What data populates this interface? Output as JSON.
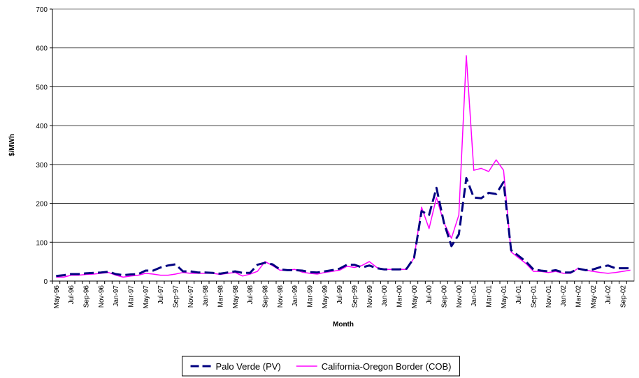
{
  "chart_data": {
    "type": "line",
    "y_label": "$/MWh",
    "x_label": "Month",
    "categories": [
      "May-96",
      null,
      "Jul-96",
      null,
      "Sep-96",
      null,
      "Nov-96",
      null,
      "Jan-97",
      null,
      "Mar-97",
      null,
      "May-97",
      null,
      "Jul-97",
      null,
      "Sep-97",
      null,
      "Nov-97",
      null,
      "Jan-98",
      null,
      "Mar-98",
      null,
      "May-98",
      null,
      "Jul-98",
      null,
      "Sep-98",
      null,
      "Nov-98",
      null,
      "Jan-99",
      null,
      "Mar-99",
      null,
      "May-99",
      null,
      "Jul-99",
      null,
      "Sep-99",
      null,
      "Nov-99",
      null,
      "Jan-00",
      null,
      "Mar-00",
      null,
      "May-00",
      null,
      "Jul-00",
      null,
      "Sep-00",
      null,
      "Nov-00",
      null,
      "Jan-01",
      null,
      "Mar-01",
      null,
      "May-01",
      null,
      "Jul-01",
      null,
      "Sep-01",
      null,
      "Nov-01",
      null,
      "Jan-02",
      null,
      "Mar-02",
      null,
      "May-02",
      null,
      "Jul-02",
      null,
      "Sep-02",
      null
    ],
    "series": [
      {
        "name": "Palo Verde (PV)",
        "color": "#000080",
        "dashed": true,
        "values": [
          13,
          15,
          18,
          18,
          20,
          21,
          22,
          24,
          18,
          15,
          17,
          18,
          27,
          27,
          35,
          40,
          43,
          25,
          25,
          22,
          22,
          21,
          19,
          22,
          25,
          21,
          21,
          42,
          47,
          43,
          30,
          28,
          28,
          27,
          23,
          22,
          25,
          28,
          32,
          42,
          42,
          35,
          40,
          33,
          30,
          30,
          30,
          32,
          60,
          180,
          170,
          240,
          150,
          90,
          120,
          265,
          215,
          213,
          227,
          224,
          255,
          80,
          65,
          50,
          30,
          27,
          25,
          28,
          22,
          22,
          32,
          28,
          30,
          36,
          40,
          33,
          33,
          33
        ]
      },
      {
        "name": "California-Oregon Border (COB)",
        "color": "#ff00ff",
        "dashed": false,
        "values": [
          10,
          10,
          15,
          15,
          17,
          18,
          20,
          22,
          15,
          10,
          13,
          15,
          20,
          18,
          15,
          15,
          18,
          22,
          20,
          20,
          20,
          20,
          17,
          20,
          22,
          13,
          18,
          25,
          50,
          40,
          28,
          28,
          30,
          23,
          20,
          18,
          22,
          25,
          28,
          38,
          35,
          40,
          50,
          35,
          30,
          30,
          30,
          30,
          60,
          190,
          135,
          215,
          150,
          110,
          170,
          580,
          285,
          290,
          282,
          312,
          285,
          75,
          60,
          45,
          25,
          25,
          22,
          25,
          20,
          20,
          33,
          28,
          25,
          22,
          20,
          22,
          25,
          28
        ]
      }
    ],
    "ylim": [
      0,
      700
    ],
    "yticks": [
      0,
      100,
      200,
      300,
      400,
      500,
      600,
      700
    ],
    "grid": true,
    "legend": "bottom"
  }
}
